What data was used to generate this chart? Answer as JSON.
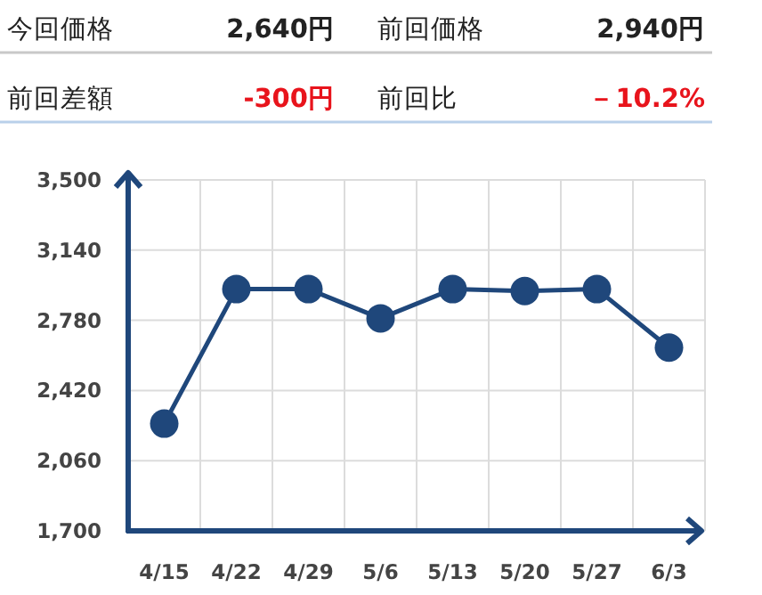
{
  "chart_data": {
    "type": "line",
    "annotations": [
      "今回価格",
      "2,640円",
      "前回価格",
      "2,940円",
      "前回差額",
      "-300円",
      "前回比",
      "－10.2%"
    ],
    "categories": [
      "4/15",
      "4/22",
      "4/29",
      "5/6",
      "5/13",
      "5/20",
      "5/27",
      "6/3"
    ],
    "values": [
      2250,
      2940,
      2940,
      2790,
      2940,
      2930,
      2940,
      2640
    ],
    "color": "#1f477b",
    "ylim": [
      1700,
      3500
    ],
    "yticks": [
      {
        "value": 1700,
        "label": "1,700"
      },
      {
        "value": 2060,
        "label": "2,060"
      },
      {
        "value": 2420,
        "label": "2,420"
      },
      {
        "value": 2780,
        "label": "2,780"
      },
      {
        "value": 3140,
        "label": "3,140"
      },
      {
        "value": 3500,
        "label": "3,500"
      }
    ],
    "grid": true,
    "marker": "circle"
  }
}
